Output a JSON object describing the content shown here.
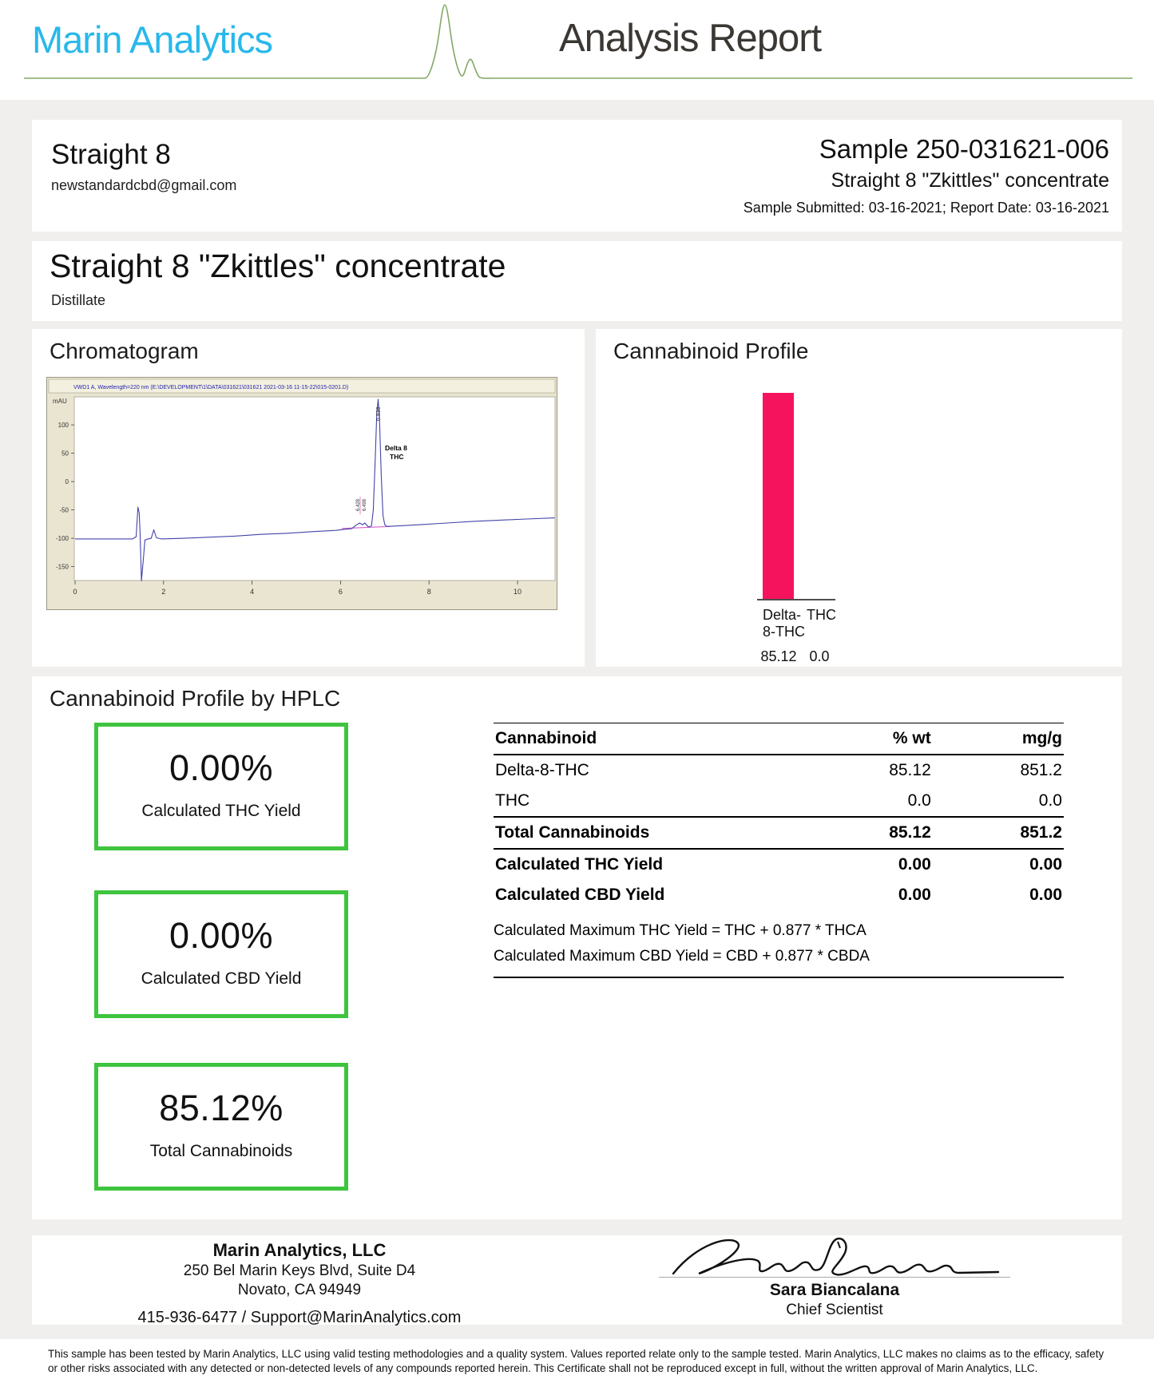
{
  "report": {
    "lab_name": "Marin Analytics",
    "title": "Analysis Report",
    "client_name": "Straight 8",
    "client_email": "newstandardcbd@gmail.com",
    "sample_id": "Sample 250-031621-006",
    "sample_name": "Straight 8 \"Zkittles\" concentrate",
    "dates_line": "Sample Submitted: 03-16-2021;  Report Date: 03-16-2021",
    "product_title": "Straight 8 \"Zkittles\" concentrate",
    "product_type": "Distillate"
  },
  "sections": {
    "chromatogram": "Chromatogram",
    "cannabinoid_profile": "Cannabinoid Profile",
    "hplc": "Cannabinoid Profile by HPLC"
  },
  "chart_data": [
    {
      "type": "line",
      "name": "chromatogram",
      "title": "VWD1 A, Wavelength=220 nm (E:\\DEVELOPMENT\\1\\DATA\\031621\\031621 2021-03-16 11-15-22\\015-0201.D)",
      "ylabel": "mAU",
      "yticks": [
        100,
        50,
        0,
        -50,
        -100,
        -150
      ],
      "xticks": [
        0,
        2,
        4,
        6,
        8,
        10
      ],
      "xlim": [
        0,
        10.85
      ],
      "ylim": [
        -185,
        150
      ],
      "grid": false,
      "trace_color": "#4343aa",
      "baseline_color": "#d862c8",
      "peak_labels": [
        "6.428",
        "6.498",
        "6.836"
      ],
      "annotation_line1": "Delta 8",
      "annotation_line2": "THC",
      "trace": [
        [
          0,
          -101
        ],
        [
          1.3,
          -101
        ],
        [
          1.38,
          -97
        ],
        [
          1.42,
          -45
        ],
        [
          1.45,
          -55
        ],
        [
          1.47,
          -90
        ],
        [
          1.5,
          -175
        ],
        [
          1.54,
          -140
        ],
        [
          1.58,
          -103
        ],
        [
          1.65,
          -101
        ],
        [
          1.72,
          -100
        ],
        [
          1.78,
          -85
        ],
        [
          1.84,
          -99
        ],
        [
          1.95,
          -101
        ],
        [
          2.4,
          -100
        ],
        [
          3.0,
          -98
        ],
        [
          3.6,
          -96
        ],
        [
          4.2,
          -93
        ],
        [
          4.8,
          -91
        ],
        [
          5.4,
          -88
        ],
        [
          5.9,
          -86
        ],
        [
          6.1,
          -84
        ],
        [
          6.25,
          -83
        ],
        [
          6.35,
          -77
        ],
        [
          6.43,
          -73
        ],
        [
          6.5,
          -76
        ],
        [
          6.55,
          -73
        ],
        [
          6.63,
          -80
        ],
        [
          6.7,
          -78
        ],
        [
          6.74,
          -50
        ],
        [
          6.78,
          30
        ],
        [
          6.82,
          120
        ],
        [
          6.85,
          145
        ],
        [
          6.88,
          110
        ],
        [
          6.92,
          10
        ],
        [
          6.96,
          -60
        ],
        [
          7.0,
          -76
        ],
        [
          7.05,
          -79
        ],
        [
          7.3,
          -78
        ],
        [
          7.8,
          -76
        ],
        [
          8.4,
          -73
        ],
        [
          9.0,
          -70
        ],
        [
          9.6,
          -68
        ],
        [
          10.2,
          -66
        ],
        [
          10.84,
          -64
        ]
      ],
      "integration_baseline": [
        [
          6.03,
          -82.5
        ],
        [
          7.12,
          -79
        ]
      ]
    },
    {
      "type": "bar",
      "name": "cannabinoid-profile",
      "categories": [
        "Delta-8-THC",
        "THC"
      ],
      "values": [
        85.12,
        0.0
      ],
      "value_labels": [
        "85.12",
        "0.0"
      ],
      "bar_color": "#f6135e",
      "ylim": [
        0,
        100
      ],
      "legend": "none"
    }
  ],
  "hplc_table": {
    "headers": [
      "Cannabinoid",
      "% wt",
      "mg/g"
    ],
    "rows": [
      {
        "name": "Delta-8-THC",
        "wt": "85.12",
        "mgg": "851.2"
      },
      {
        "name": "THC",
        "wt": "0.0",
        "mgg": "0.0"
      },
      {
        "name": "Total Cannabinoids",
        "wt": "85.12",
        "mgg": "851.2"
      },
      {
        "name": "Calculated THC Yield",
        "wt": "0.00",
        "mgg": "0.00"
      },
      {
        "name": "Calculated CBD Yield",
        "wt": "0.00",
        "mgg": "0.00"
      }
    ],
    "notes": [
      "Calculated Maximum THC Yield = THC + 0.877 * THCA",
      "Calculated Maximum CBD Yield = CBD + 0.877 * CBDA"
    ]
  },
  "summary_boxes": [
    {
      "value": "0.00%",
      "label": "Calculated THC Yield"
    },
    {
      "value": "0.00%",
      "label": "Calculated CBD Yield"
    },
    {
      "value": "85.12%",
      "label": "Total Cannabinoids"
    }
  ],
  "footer": {
    "company": "Marin Analytics, LLC",
    "address1": "250 Bel Marin Keys Blvd, Suite D4",
    "address2": "Novato, CA 94949",
    "contact": "415-936-6477 / Support@MarinAnalytics.com",
    "signer_name": "Sara Biancalana",
    "signer_title": "Chief Scientist",
    "disclaimer": "This sample has been tested by Marin Analytics, LLC using valid testing methodologies and a quality system.  Values reported relate only to the sample tested.  Marin Analytics, LLC makes no claims as to the efficacy, safety or other risks associated with any detected or non-detected levels of any compounds reported herein.  This Certificate shall not be reproduced except in full, without the written approval of Marin Analytics, LLC."
  },
  "colors": {
    "brand_cyan": "#29b8ea",
    "header_rule_green": "#84a866",
    "bar_pink": "#f6135e",
    "summary_box_green": "#3ec43e"
  }
}
